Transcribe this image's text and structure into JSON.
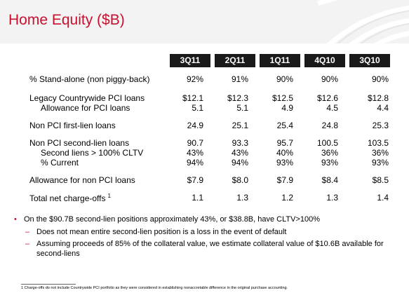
{
  "title": "Home Equity ($B)",
  "columns": [
    "3Q11",
    "2Q11",
    "1Q11",
    "4Q10",
    "3Q10"
  ],
  "rows": [
    {
      "label": "% Stand-alone (non piggy-back)",
      "values": [
        "92%",
        "91%",
        "90%",
        "90%",
        "90%"
      ]
    },
    {
      "label": "Legacy Countrywide PCI loans",
      "values": [
        "$12.1",
        "$12.3",
        "$12.5",
        "$12.6",
        "$12.8"
      ]
    },
    {
      "label": "Allowance for PCI loans",
      "values": [
        "5.1",
        "5.1",
        "4.9",
        "4.5",
        "4.4"
      ]
    },
    {
      "label": "Non PCI first-lien loans",
      "values": [
        "24.9",
        "25.1",
        "25.4",
        "24.8",
        "25.3"
      ]
    },
    {
      "label": "Non PCI second-lien loans",
      "values": [
        "90.7",
        "93.3",
        "95.7",
        "100.5",
        "103.5"
      ]
    },
    {
      "label": "Second liens > 100% CLTV",
      "values": [
        "43%",
        "43%",
        "40%",
        "36%",
        "36%"
      ]
    },
    {
      "label": "% Current",
      "values": [
        "94%",
        "94%",
        "93%",
        "93%",
        "93%"
      ]
    },
    {
      "label": "Allowance for non PCI loans",
      "values": [
        "$7.9",
        "$8.0",
        "$7.9",
        "$8.4",
        "$8.5"
      ]
    },
    {
      "label": "Total net charge-offs",
      "values": [
        "1.1",
        "1.3",
        "1.2",
        "1.3",
        "1.4"
      ]
    }
  ],
  "footnote_marker": "1",
  "bullets": {
    "main": "On the $90.7B second-lien positions approximately 43%, or $38.8B, have CLTV>100%",
    "sub1": "Does not mean entire second-lien position is a loss in the event of default",
    "sub2": "Assuming proceeds of 85% of the collateral value, we estimate collateral value of $10.6B available for second-liens"
  },
  "footnote": "1 Charge-offs do not include Countrywide PCI portfolio as they were considered in establishing nonaccretable difference in the original purchase accounting.",
  "colors": {
    "accent": "#c8102e",
    "header_bg": "#1a1a1a",
    "band": "#f3f3f3"
  }
}
